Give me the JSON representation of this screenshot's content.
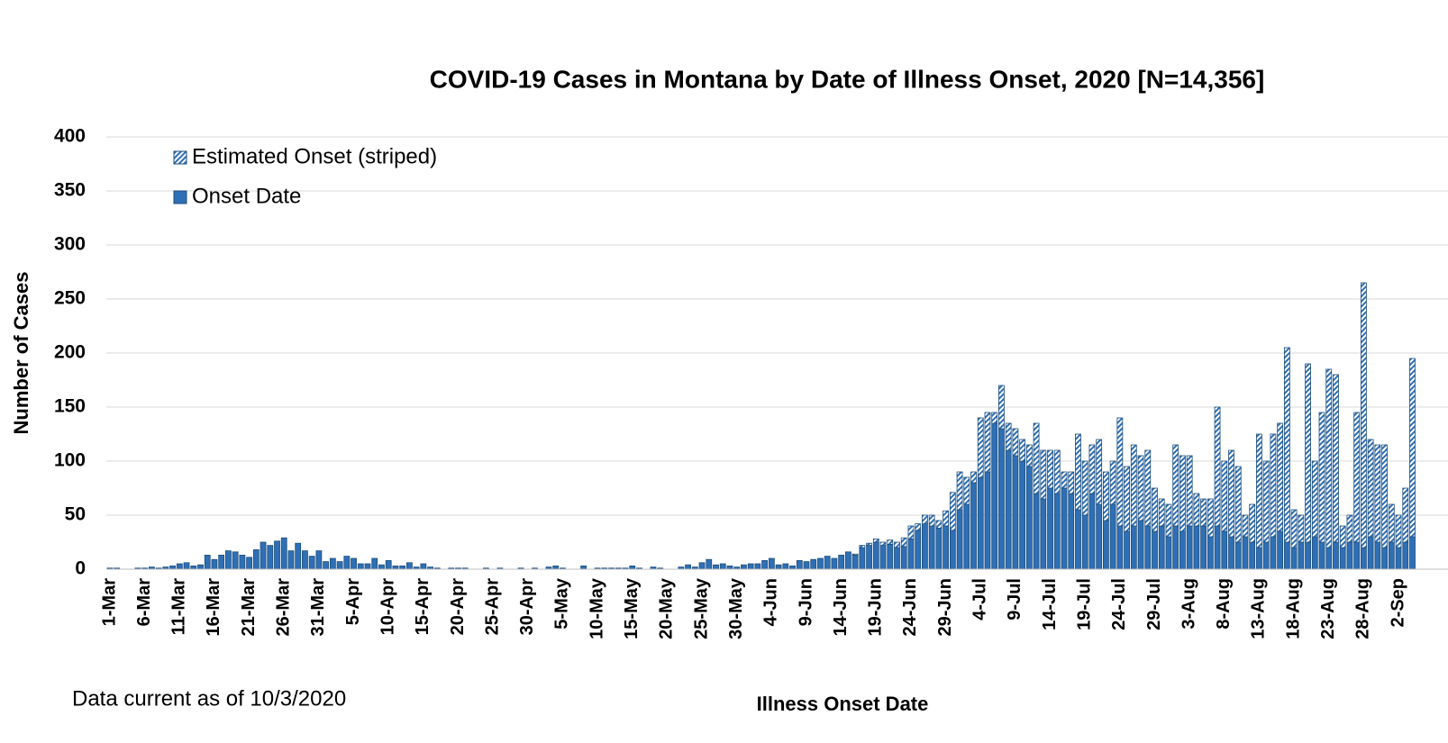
{
  "chart_data": {
    "type": "stacked_bar",
    "title": "COVID-19 Cases in Montana by Date of Illness Onset, 2020 [N=14,356]",
    "x_label": "Illness Onset Date",
    "y_label": "Number of Cases",
    "note": "Data current as of 10/3/2020",
    "ylim": [
      0,
      400
    ],
    "yticks": [
      0,
      50,
      100,
      150,
      200,
      250,
      300,
      350,
      400
    ],
    "grid": true,
    "legend": "upper left",
    "categories": [
      "1-Mar",
      null,
      null,
      null,
      null,
      "6-Mar",
      null,
      null,
      null,
      null,
      "11-Mar",
      null,
      null,
      null,
      null,
      "16-Mar",
      null,
      null,
      null,
      null,
      "21-Mar",
      null,
      null,
      null,
      null,
      "26-Mar",
      null,
      null,
      null,
      null,
      "31-Mar",
      null,
      null,
      null,
      null,
      "5-Apr",
      null,
      null,
      null,
      null,
      "10-Apr",
      null,
      null,
      null,
      null,
      "15-Apr",
      null,
      null,
      null,
      null,
      "20-Apr",
      null,
      null,
      null,
      null,
      "25-Apr",
      null,
      null,
      null,
      null,
      "30-Apr",
      null,
      null,
      null,
      null,
      "5-May",
      null,
      null,
      null,
      null,
      "10-May",
      null,
      null,
      null,
      null,
      "15-May",
      null,
      null,
      null,
      null,
      "20-May",
      null,
      null,
      null,
      null,
      "25-May",
      null,
      null,
      null,
      null,
      "30-May",
      null,
      null,
      null,
      null,
      "4-Jun",
      null,
      null,
      null,
      null,
      "9-Jun",
      null,
      null,
      null,
      null,
      "14-Jun",
      null,
      null,
      null,
      null,
      "19-Jun",
      null,
      null,
      null,
      null,
      "24-Jun",
      null,
      null,
      null,
      null,
      "29-Jun",
      null,
      null,
      null,
      null,
      "4-Jul",
      null,
      null,
      null,
      null,
      "9-Jul",
      null,
      null,
      null,
      null,
      "14-Jul",
      null,
      null,
      null,
      null,
      "19-Jul",
      null,
      null,
      null,
      null,
      "24-Jul",
      null,
      null,
      null,
      null,
      "29-Jul",
      null,
      null,
      null,
      null,
      "3-Aug",
      null,
      null,
      null,
      null,
      "8-Aug",
      null,
      null,
      null,
      null,
      "13-Aug",
      null,
      null,
      null,
      null,
      "18-Aug",
      null,
      null,
      null,
      null,
      "23-Aug",
      null,
      null,
      null,
      null,
      "28-Aug",
      null,
      null,
      null,
      null,
      "2-Sep",
      null,
      null
    ],
    "series": [
      {
        "name": "Estimated Onset (striped)",
        "color": "#2e6fb5",
        "pattern": "striped",
        "values": [
          0,
          0,
          0,
          0,
          0,
          0,
          0,
          0,
          0,
          0,
          0,
          0,
          0,
          0,
          0,
          0,
          0,
          0,
          0,
          0,
          0,
          0,
          0,
          0,
          0,
          0,
          0,
          0,
          0,
          0,
          0,
          0,
          0,
          0,
          0,
          0,
          0,
          0,
          0,
          0,
          0,
          0,
          0,
          0,
          0,
          0,
          0,
          0,
          0,
          0,
          0,
          0,
          0,
          0,
          0,
          0,
          0,
          0,
          0,
          0,
          0,
          0,
          0,
          0,
          0,
          0,
          0,
          0,
          0,
          0,
          0,
          0,
          0,
          0,
          0,
          0,
          0,
          0,
          0,
          0,
          0,
          0,
          0,
          0,
          0,
          0,
          0,
          0,
          0,
          0,
          0,
          0,
          0,
          0,
          0,
          0,
          0,
          0,
          0,
          0,
          0,
          0,
          0,
          0,
          0,
          0,
          0,
          1,
          2,
          2,
          3,
          3,
          4,
          5,
          8,
          12,
          6,
          8,
          10,
          7,
          14,
          35,
          35,
          25,
          10,
          55,
          55,
          10,
          40,
          25,
          25,
          20,
          20,
          65,
          45,
          35,
          40,
          15,
          20,
          70,
          50,
          45,
          60,
          45,
          40,
          100,
          60,
          75,
          60,
          70,
          40,
          25,
          30,
          75,
          70,
          65,
          30,
          25,
          35,
          110,
          65,
          80,
          70,
          20,
          35,
          105,
          75,
          95,
          100,
          180,
          35,
          25,
          165,
          70,
          120,
          165,
          155,
          20,
          25,
          120,
          245,
          90,
          90,
          95,
          35,
          30,
          50,
          165
        ]
      },
      {
        "name": "Onset Date",
        "color": "#2e6fb5",
        "values": [
          1,
          1,
          0,
          0,
          1,
          1,
          2,
          1,
          2,
          3,
          5,
          6,
          3,
          4,
          13,
          9,
          13,
          17,
          16,
          13,
          11,
          18,
          25,
          22,
          26,
          29,
          17,
          24,
          17,
          12,
          17,
          7,
          10,
          7,
          12,
          10,
          5,
          5,
          10,
          4,
          8,
          3,
          3,
          6,
          2,
          5,
          2,
          1,
          0,
          1,
          1,
          1,
          0,
          0,
          1,
          0,
          1,
          0,
          0,
          1,
          0,
          1,
          0,
          2,
          3,
          1,
          0,
          0,
          3,
          0,
          1,
          1,
          1,
          1,
          1,
          3,
          1,
          0,
          2,
          1,
          0,
          0,
          2,
          4,
          2,
          6,
          9,
          4,
          5,
          3,
          2,
          4,
          5,
          5,
          8,
          10,
          4,
          5,
          3,
          8,
          7,
          9,
          10,
          12,
          10,
          13,
          16,
          13,
          20,
          22,
          25,
          22,
          23,
          20,
          21,
          28,
          36,
          42,
          40,
          38,
          40,
          36,
          55,
          60,
          80,
          85,
          90,
          135,
          130,
          110,
          105,
          100,
          95,
          70,
          65,
          75,
          70,
          75,
          70,
          55,
          50,
          70,
          60,
          45,
          60,
          40,
          35,
          40,
          45,
          40,
          35,
          40,
          30,
          40,
          35,
          40,
          40,
          40,
          30,
          40,
          35,
          30,
          25,
          30,
          25,
          20,
          25,
          30,
          35,
          25,
          20,
          25,
          25,
          30,
          25,
          20,
          25,
          20,
          25,
          25,
          20,
          30,
          25,
          20,
          25,
          20,
          25,
          30
        ]
      }
    ]
  }
}
